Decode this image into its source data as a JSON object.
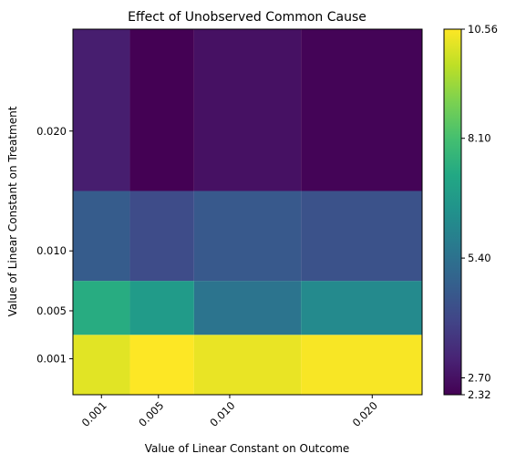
{
  "chart_data": {
    "type": "heatmap",
    "title": "Effect of Unobserved Common Cause",
    "xlabel": "Value of Linear Constant on Outcome",
    "ylabel": "Value of Linear Constant on Treatment",
    "x": [
      0.001,
      0.005,
      0.01,
      0.02
    ],
    "x_tick_labels": [
      "0.001",
      "0.005",
      "0.010",
      "0.020"
    ],
    "y": [
      0.001,
      0.005,
      0.01,
      0.02
    ],
    "y_tick_labels": [
      "0.001",
      "0.005",
      "0.010",
      "0.020"
    ],
    "z": [
      [
        10.2,
        10.56,
        10.3,
        10.5
      ],
      [
        7.4,
        6.8,
        5.5,
        6.2
      ],
      [
        4.7,
        4.2,
        4.6,
        4.4
      ],
      [
        3.0,
        2.32,
        2.7,
        2.4
      ]
    ],
    "colormap": "viridis",
    "colorbar": {
      "min": 2.32,
      "max": 10.56,
      "tick_values": [
        2.32,
        2.7,
        5.4,
        8.1,
        10.56
      ],
      "tick_labels": [
        "2.32",
        "2.70",
        "5.40",
        "8.10",
        "10.56"
      ]
    }
  }
}
